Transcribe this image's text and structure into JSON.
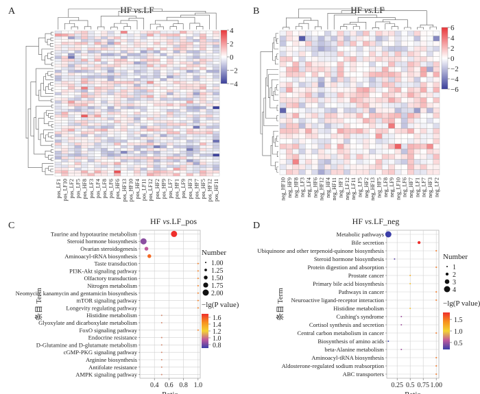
{
  "chart_data": [
    {
      "panel": "A",
      "type": "heatmap",
      "title_prefix": "HF ",
      "title_italic": "vs.",
      "title_suffix": "LF",
      "columns": [
        "pos_LF1",
        "pos_LF10",
        "pos_LF2",
        "pos_LF5",
        "pos_HF8",
        "pos_LF3",
        "pos_LF4",
        "pos_LF8",
        "pos_LF6",
        "pos_HF6",
        "pos_HF13",
        "pos_HF10",
        "pos_HF4",
        "pos_LF11",
        "pos_LF12",
        "pos_HF2",
        "pos_HF9",
        "pos_LF7",
        "pos_HF1",
        "pos_LF9",
        "pos_HF3",
        "pos_HF7",
        "pos_HF5",
        "pos_HF12",
        "pos_HF11"
      ],
      "rows": 52,
      "legend_ticks": [
        "4",
        "2",
        "0",
        "−2",
        "−4"
      ],
      "range": [
        -5,
        5
      ],
      "seed": 17
    },
    {
      "panel": "B",
      "type": "heatmap",
      "title_prefix": "HF ",
      "title_italic": "vs.",
      "title_suffix": "LF",
      "columns": [
        "neg_HF10",
        "neg_HF9",
        "neg_HF8",
        "neg_LF3",
        "neg_LF4",
        "neg_HF6",
        "neg_HF12",
        "neg_HF4",
        "neg_HF11",
        "neg_HF1",
        "neg_LF12",
        "neg_LF11",
        "neg_LF5",
        "neg_HF2",
        "neg_HF13",
        "neg_HF5",
        "neg_LF8",
        "neg_LF9",
        "neg_LF10",
        "neg_LF6",
        "neg_HF7",
        "neg_LF1",
        "neg_LF7",
        "neg_HF3",
        "neg_LF2"
      ],
      "rows": 28,
      "legend_ticks": [
        "6",
        "4",
        "2",
        "0",
        "−2",
        "−4",
        "−6"
      ],
      "range": [
        -6,
        6
      ],
      "seed": 41
    },
    {
      "panel": "C",
      "type": "scatter",
      "title_prefix": "HF ",
      "title_italic": "vs.",
      "title_suffix": "LF_pos",
      "xlabel": "Ratio",
      "ylabel": "条目 Term",
      "xlim": [
        0.2,
        1.03
      ],
      "xticks": [
        0.4,
        0.6,
        0.8,
        1.0
      ],
      "xtick_labels": [
        "0.4",
        "0.6",
        "0.8",
        "1.0"
      ],
      "terms": [
        "Taurine and hypotaurine metabolism",
        "Steroid hormone biosynthesis",
        "Ovarian steroidogenesis",
        "Aminoacyl-tRNA biosynthesis",
        "Taste transduction",
        "PI3K-Akt signaling pathway",
        "Olfactory transduction",
        "Nitrogen metabolism",
        "Neomycin, kanamycin and gentamicin biosynthesis",
        "mTOR signaling pathway",
        "Longevity regulating pathway",
        "Histidine metabolism",
        "Glyoxylate and dicarboxylate metabolism",
        "FoxO signaling pathway",
        "Endocrine resistance",
        "D-Glutamine and D-glutamate metabolism",
        "cGMP-PKG signaling pathway",
        "Arginine biosynthesis",
        "Antifolate resistance",
        "AMPK signaling pathway"
      ],
      "ratio": [
        0.67,
        0.25,
        0.29,
        0.33,
        1.0,
        1.0,
        1.0,
        1.0,
        1.0,
        1.0,
        1.0,
        0.5,
        0.5,
        1.0,
        0.5,
        0.5,
        0.5,
        0.5,
        0.5,
        0.5
      ],
      "number": [
        2,
        2,
        1.5,
        1.5,
        1,
        1,
        1,
        1,
        1,
        1,
        1,
        1,
        1,
        1,
        1,
        1,
        1,
        1,
        1,
        1
      ],
      "neglog_p": [
        1.7,
        0.85,
        0.95,
        1.55,
        1.5,
        1.5,
        1.5,
        1.5,
        1.5,
        1.5,
        1.5,
        1.05,
        1.05,
        1.5,
        1.05,
        1.05,
        1.05,
        1.05,
        1.05,
        1.05
      ],
      "size_legend_title": "Number",
      "size_legend": [
        1.0,
        1.25,
        1.5,
        1.75,
        2.0
      ],
      "size_legend_labels": [
        "1.00",
        "1.25",
        "1.50",
        "1.75",
        "2.00"
      ],
      "color_legend_title": "−lg(P value)",
      "color_range": [
        0.7,
        1.7
      ],
      "color_ticks": [
        1.6,
        1.4,
        1.2,
        1.0,
        0.8
      ],
      "color_tick_labels": [
        "1.6",
        "1.4",
        "1.2",
        "1.0",
        "0.8"
      ]
    },
    {
      "panel": "D",
      "type": "scatter",
      "title_prefix": "HF ",
      "title_italic": "vs.",
      "title_suffix": "LF_neg",
      "xlabel": "Ratio",
      "ylabel": "条目 Term",
      "xlim": [
        0.05,
        1.05
      ],
      "xticks": [
        0.25,
        0.5,
        0.75,
        1.0
      ],
      "xtick_labels": [
        "0.25",
        "0.5",
        "0.75",
        "1.00"
      ],
      "terms": [
        "Metabolic pathways",
        "Bile secretion",
        "Ubiquinone and other terpenoid-quinone biosynthesis",
        "Steroid hormone biosynthesis",
        "Protein digestion and absorption",
        "Prostate cancer",
        "Primary bile acid biosynthesis",
        "Pathways in cancer",
        "Neuroactive ligand-receptor interaction",
        "Histidine metabolism",
        "Cushing's syndrome",
        "Cortisol synthesis and secretion",
        "Central carbon metabolism in cancer",
        "Biosynthesis of amino acids",
        "beta-Alanine metabolism",
        "Aminoacyl-tRNA biosynthesis",
        "Aldosterone-regulated sodium reabsorption",
        "ABC transporters"
      ],
      "ratio": [
        0.08,
        0.67,
        1.0,
        0.2,
        1.0,
        0.5,
        0.5,
        1.0,
        1.0,
        0.5,
        0.33,
        0.33,
        1.0,
        0.08,
        0.33,
        1.0,
        1.0,
        1.0
      ],
      "number": [
        4,
        2,
        1,
        1,
        1,
        1,
        1,
        1,
        1,
        1,
        1,
        1,
        1,
        1,
        1,
        1,
        1,
        1
      ],
      "neglog_p": [
        0.2,
        1.8,
        1.5,
        0.3,
        1.5,
        1.2,
        1.1,
        1.5,
        1.5,
        1.1,
        0.5,
        0.5,
        1.5,
        0.2,
        0.5,
        1.5,
        1.5,
        1.5
      ],
      "size_legend_title": "Number",
      "size_legend": [
        1,
        2,
        3,
        4
      ],
      "size_legend_labels": [
        "1",
        "2",
        "3",
        "4"
      ],
      "color_legend_title": "−lg(P value)",
      "color_range": [
        0.2,
        1.8
      ],
      "color_ticks": [
        1.5,
        1.0,
        0.5
      ],
      "color_tick_labels": [
        "1.5",
        "1.0",
        "0.5"
      ]
    }
  ]
}
